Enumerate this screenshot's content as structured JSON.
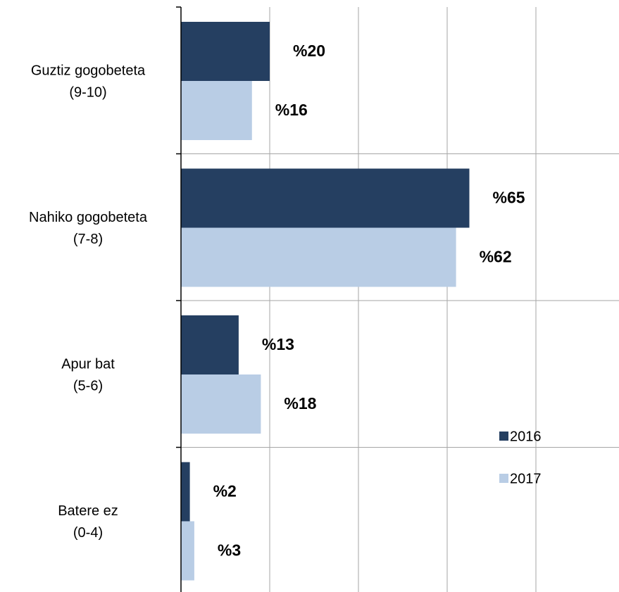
{
  "chart_data": {
    "type": "bar",
    "orientation": "horizontal",
    "categories": [
      [
        "Guztiz gogobeteta",
        "(9-10)"
      ],
      [
        "Nahiko gogobeteta",
        "(7-8)"
      ],
      [
        "Apur bat",
        "(5-6)"
      ],
      [
        "Batere ez",
        "(0-4)"
      ]
    ],
    "series": [
      {
        "name": "2016",
        "color": "#253f61",
        "values": [
          20,
          65,
          13,
          2
        ],
        "value_labels": [
          "%20",
          "%65",
          "%13",
          "%2"
        ]
      },
      {
        "name": "2017",
        "color": "#b9cde5",
        "values": [
          16,
          62,
          18,
          3
        ],
        "value_labels": [
          "%16",
          "%62",
          "%18",
          "%3"
        ]
      }
    ],
    "xlim": [
      0,
      98
    ],
    "xticks": [
      0,
      20,
      40,
      60,
      80
    ],
    "grid": true,
    "legend": "lower right"
  }
}
